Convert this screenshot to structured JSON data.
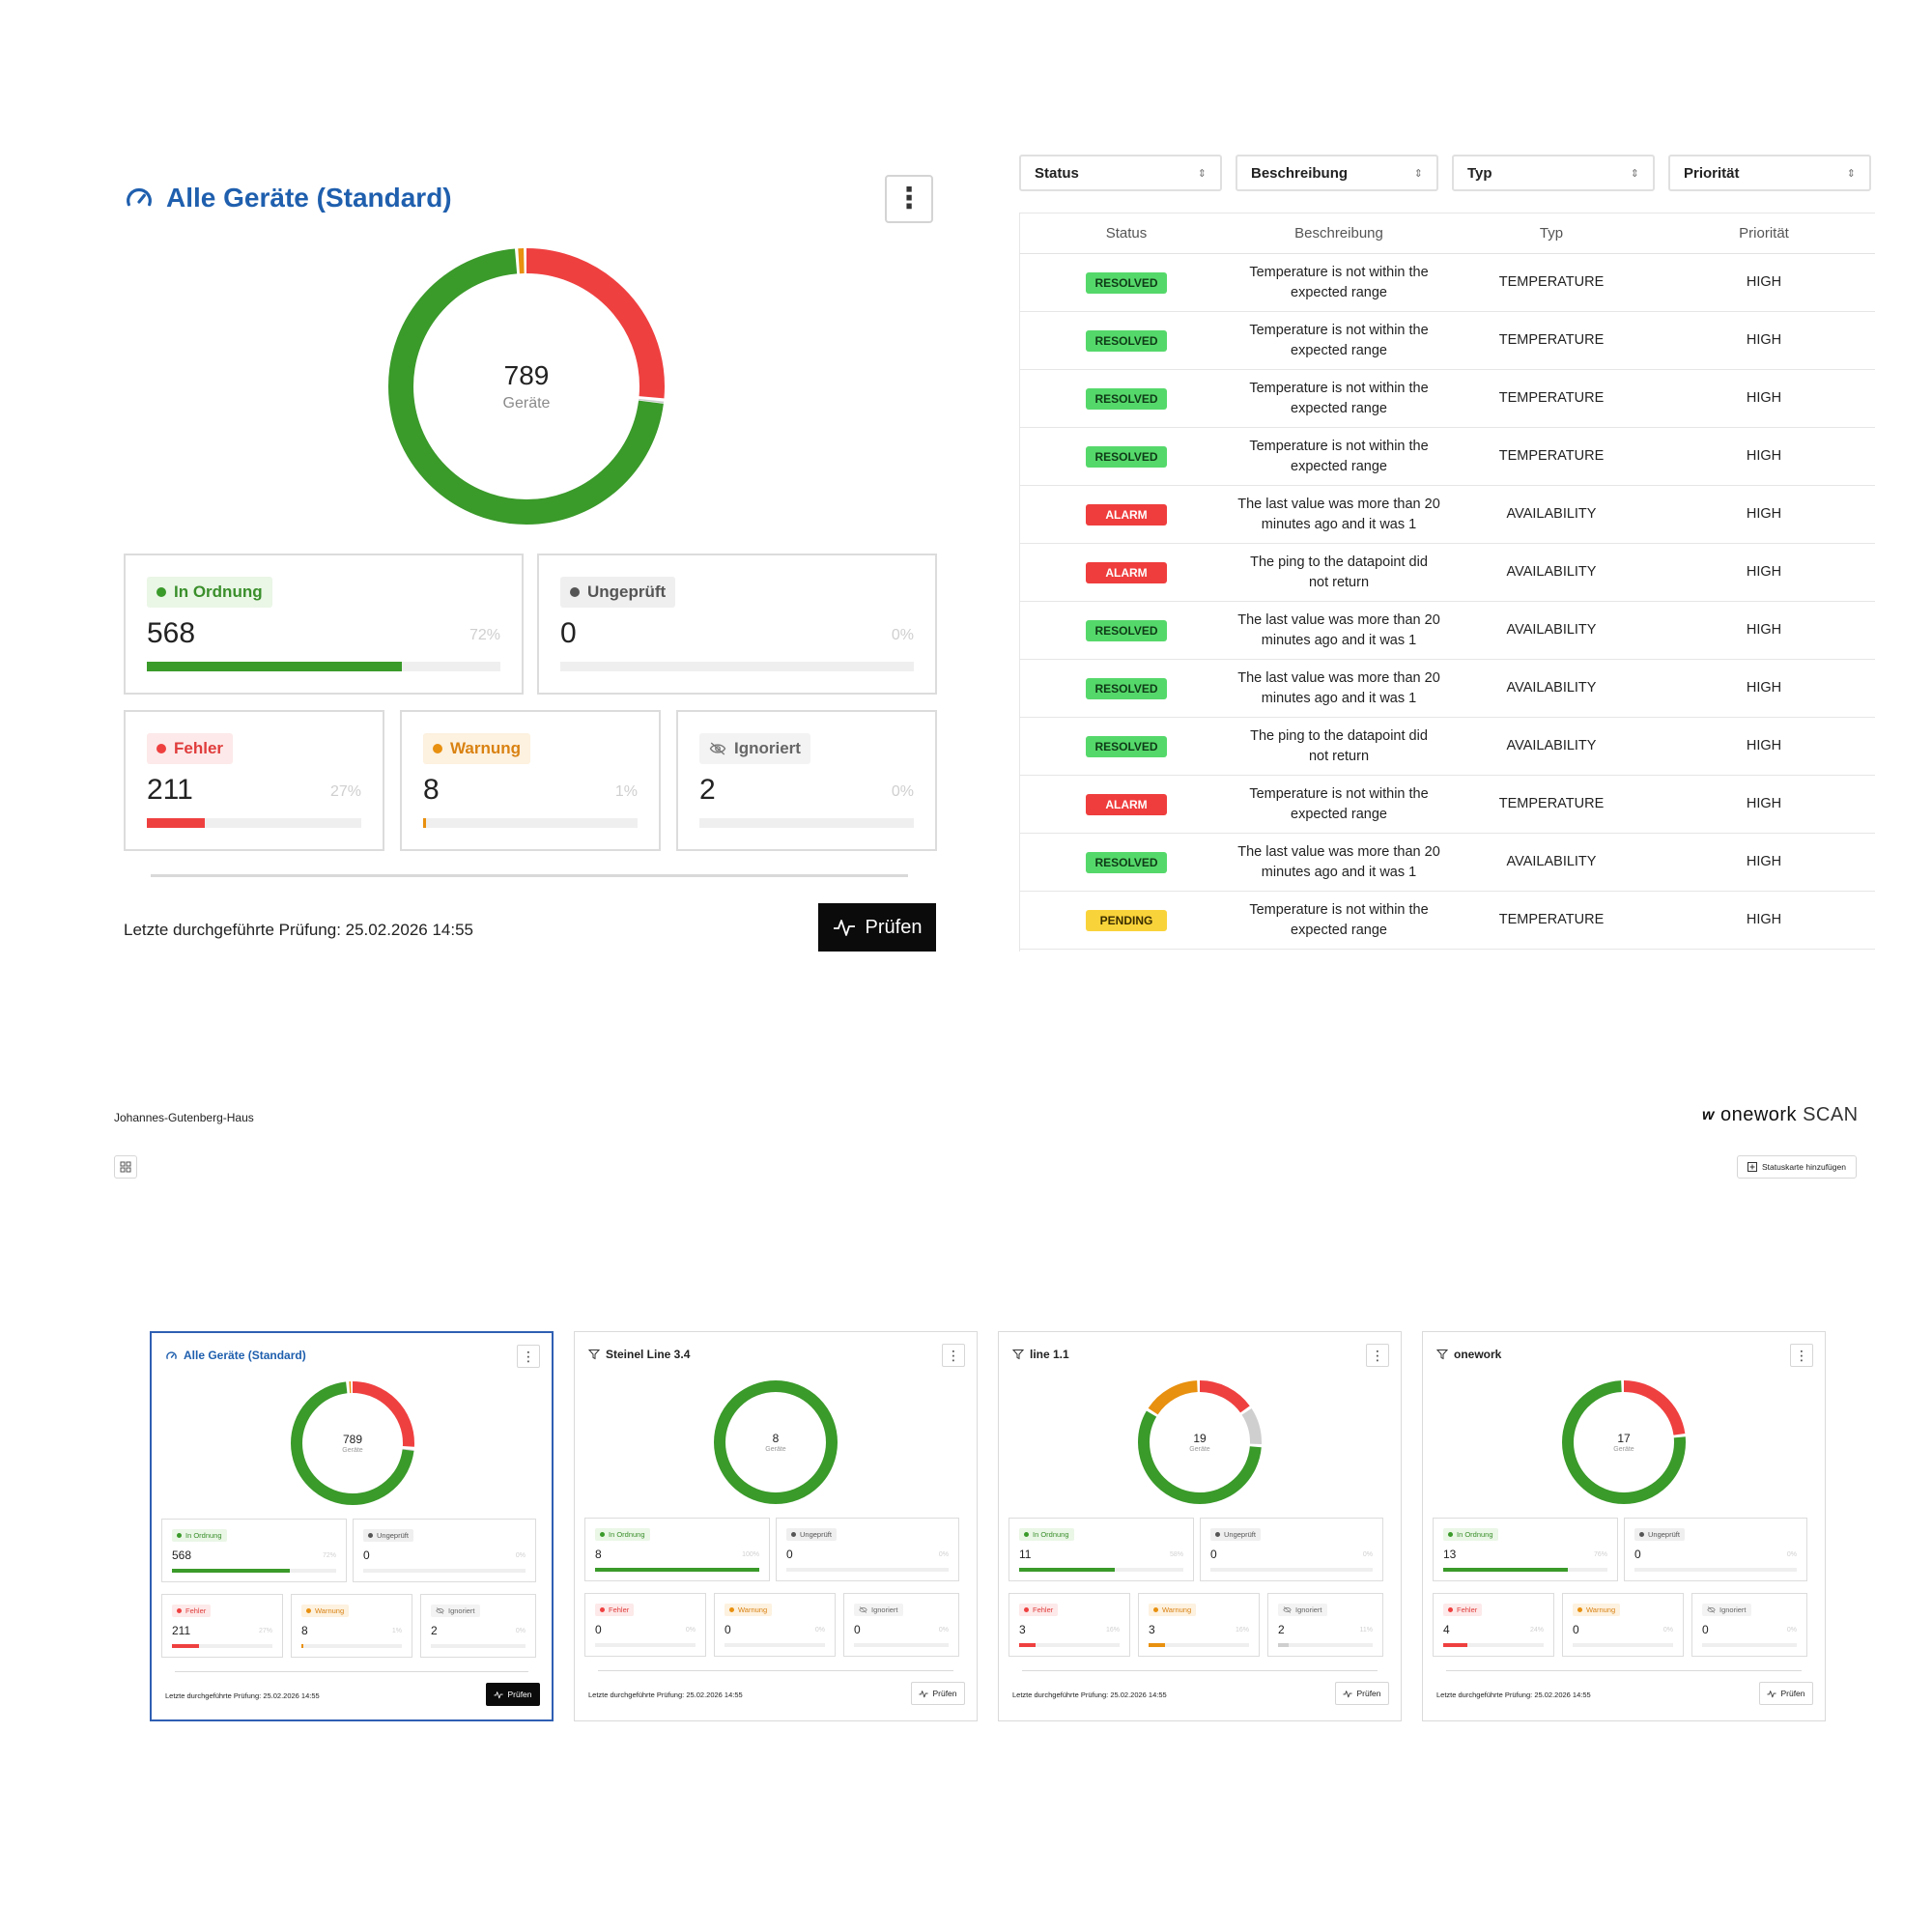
{
  "main_card": {
    "title": "Alle Geräte (Standard)",
    "total": "789",
    "total_label": "Geräte",
    "stats": {
      "ok": {
        "label": "In Ordnung",
        "value": "568",
        "pct": "72%",
        "fraction": 0.72
      },
      "unchecked": {
        "label": "Ungeprüft",
        "value": "0",
        "pct": "0%",
        "fraction": 0
      },
      "error": {
        "label": "Fehler",
        "value": "211",
        "pct": "27%",
        "fraction": 0.27
      },
      "warning": {
        "label": "Warnung",
        "value": "8",
        "pct": "1%",
        "fraction": 0.01
      },
      "ignored": {
        "label": "Ignoriert",
        "value": "2",
        "pct": "0%",
        "fraction": 0
      }
    },
    "last_check": "Letzte durchgeführte Prüfung: 25.02.2026 14:55",
    "check_button": "Prüfen",
    "donut": {
      "ok": 568,
      "warning": 8,
      "error": 211,
      "ignored": 2
    }
  },
  "filters": [
    {
      "label": "Status"
    },
    {
      "label": "Beschreibung"
    },
    {
      "label": "Typ"
    },
    {
      "label": "Priorität"
    }
  ],
  "table": {
    "headers": [
      "Status",
      "Beschreibung",
      "Typ",
      "Priorität"
    ],
    "rows": [
      {
        "status": "RESOLVED",
        "desc_line1": "Temperature is not within the",
        "desc_line2": "expected range",
        "type": "TEMPERATURE",
        "priority": "HIGH"
      },
      {
        "status": "RESOLVED",
        "desc_line1": "Temperature is not within the",
        "desc_line2": "expected range",
        "type": "TEMPERATURE",
        "priority": "HIGH"
      },
      {
        "status": "RESOLVED",
        "desc_line1": "Temperature is not within the",
        "desc_line2": "expected range",
        "type": "TEMPERATURE",
        "priority": "HIGH"
      },
      {
        "status": "RESOLVED",
        "desc_line1": "Temperature is not within the",
        "desc_line2": "expected range",
        "type": "TEMPERATURE",
        "priority": "HIGH"
      },
      {
        "status": "ALARM",
        "desc_line1": "The last value was more than 20",
        "desc_line2": "minutes ago and it was 1",
        "type": "AVAILABILITY",
        "priority": "HIGH"
      },
      {
        "status": "ALARM",
        "desc_line1": "The ping to the datapoint did",
        "desc_line2": "not return",
        "type": "AVAILABILITY",
        "priority": "HIGH"
      },
      {
        "status": "RESOLVED",
        "desc_line1": "The last value was more than 20",
        "desc_line2": "minutes ago and it was 1",
        "type": "AVAILABILITY",
        "priority": "HIGH"
      },
      {
        "status": "RESOLVED",
        "desc_line1": "The last value was more than 20",
        "desc_line2": "minutes ago and it was 1",
        "type": "AVAILABILITY",
        "priority": "HIGH"
      },
      {
        "status": "RESOLVED",
        "desc_line1": "The ping to the datapoint did",
        "desc_line2": "not return",
        "type": "AVAILABILITY",
        "priority": "HIGH"
      },
      {
        "status": "ALARM",
        "desc_line1": "Temperature is not within the",
        "desc_line2": "expected range",
        "type": "TEMPERATURE",
        "priority": "HIGH"
      },
      {
        "status": "RESOLVED",
        "desc_line1": "The last value was more than 20",
        "desc_line2": "minutes ago and it was 1",
        "type": "AVAILABILITY",
        "priority": "HIGH"
      },
      {
        "status": "PENDING",
        "desc_line1": "Temperature is not within the",
        "desc_line2": "expected range",
        "type": "TEMPERATURE",
        "priority": "HIGH"
      }
    ]
  },
  "page": {
    "site_name": "Johannes-Gutenberg-Haus",
    "brand_name": "onework",
    "brand_suffix": "SCAN",
    "add_card_button": "Statuskarte hinzufügen"
  },
  "mini_cards": [
    {
      "title": "Alle Geräte (Standard)",
      "icon": "gauge-icon",
      "active": true,
      "total": "789",
      "total_label": "Geräte",
      "donut": {
        "ok": 568,
        "warning": 8,
        "error": 211,
        "ignored": 2
      },
      "stats": [
        {
          "key": "ok",
          "label": "In Ordnung",
          "value": "568",
          "pct": "72%",
          "fraction": 0.72
        },
        {
          "key": "unchecked",
          "label": "Ungeprüft",
          "value": "0",
          "pct": "0%",
          "fraction": 0
        },
        {
          "key": "error",
          "label": "Fehler",
          "value": "211",
          "pct": "27%",
          "fraction": 0.27
        },
        {
          "key": "warning",
          "label": "Warnung",
          "value": "8",
          "pct": "1%",
          "fraction": 0.01
        },
        {
          "key": "ignored",
          "label": "Ignoriert",
          "value": "2",
          "pct": "0%",
          "fraction": 0
        }
      ],
      "last_check": "Letzte durchgeführte Prüfung: 25.02.2026 14:55",
      "check_button": "Prüfen"
    },
    {
      "title": "Steinel Line 3.4",
      "icon": "filter-icon",
      "active": false,
      "total": "8",
      "total_label": "Geräte",
      "donut": {
        "ok": 8,
        "warning": 0,
        "error": 0,
        "ignored": 0
      },
      "stats": [
        {
          "key": "ok",
          "label": "In Ordnung",
          "value": "8",
          "pct": "100%",
          "fraction": 1.0
        },
        {
          "key": "unchecked",
          "label": "Ungeprüft",
          "value": "0",
          "pct": "0%",
          "fraction": 0
        },
        {
          "key": "error",
          "label": "Fehler",
          "value": "0",
          "pct": "0%",
          "fraction": 0
        },
        {
          "key": "warning",
          "label": "Warnung",
          "value": "0",
          "pct": "0%",
          "fraction": 0
        },
        {
          "key": "ignored",
          "label": "Ignoriert",
          "value": "0",
          "pct": "0%",
          "fraction": 0
        }
      ],
      "last_check": "Letzte durchgeführte Prüfung: 25.02.2026 14:55",
      "check_button": "Prüfen"
    },
    {
      "title": "line 1.1",
      "icon": "filter-icon",
      "active": false,
      "total": "19",
      "total_label": "Geräte",
      "donut": {
        "ok": 11,
        "warning": 3,
        "error": 3,
        "ignored": 2
      },
      "stats": [
        {
          "key": "ok",
          "label": "In Ordnung",
          "value": "11",
          "pct": "58%",
          "fraction": 0.58
        },
        {
          "key": "unchecked",
          "label": "Ungeprüft",
          "value": "0",
          "pct": "0%",
          "fraction": 0
        },
        {
          "key": "error",
          "label": "Fehler",
          "value": "3",
          "pct": "16%",
          "fraction": 0.16
        },
        {
          "key": "warning",
          "label": "Warnung",
          "value": "3",
          "pct": "16%",
          "fraction": 0.16
        },
        {
          "key": "ignored",
          "label": "Ignoriert",
          "value": "2",
          "pct": "11%",
          "fraction": 0.11
        }
      ],
      "last_check": "Letzte durchgeführte Prüfung: 25.02.2026 14:55",
      "check_button": "Prüfen"
    },
    {
      "title": "onework",
      "icon": "filter-icon",
      "active": false,
      "total": "17",
      "total_label": "Geräte",
      "donut": {
        "ok": 13,
        "warning": 0,
        "error": 4,
        "ignored": 0
      },
      "stats": [
        {
          "key": "ok",
          "label": "In Ordnung",
          "value": "13",
          "pct": "76%",
          "fraction": 0.76
        },
        {
          "key": "unchecked",
          "label": "Ungeprüft",
          "value": "0",
          "pct": "0%",
          "fraction": 0
        },
        {
          "key": "error",
          "label": "Fehler",
          "value": "4",
          "pct": "24%",
          "fraction": 0.24
        },
        {
          "key": "warning",
          "label": "Warnung",
          "value": "0",
          "pct": "0%",
          "fraction": 0
        },
        {
          "key": "ignored",
          "label": "Ignoriert",
          "value": "0",
          "pct": "0%",
          "fraction": 0
        }
      ],
      "last_check": "Letzte durchgeführte Prüfung: 25.02.2026 14:55",
      "check_button": "Prüfen"
    }
  ],
  "colors": {
    "ok": "#3a9a2a",
    "error": "#ef4040",
    "warning": "#e8900f",
    "ignored": "#cfcfcf",
    "unchecked": "#555555",
    "accent": "#1f5fae"
  }
}
